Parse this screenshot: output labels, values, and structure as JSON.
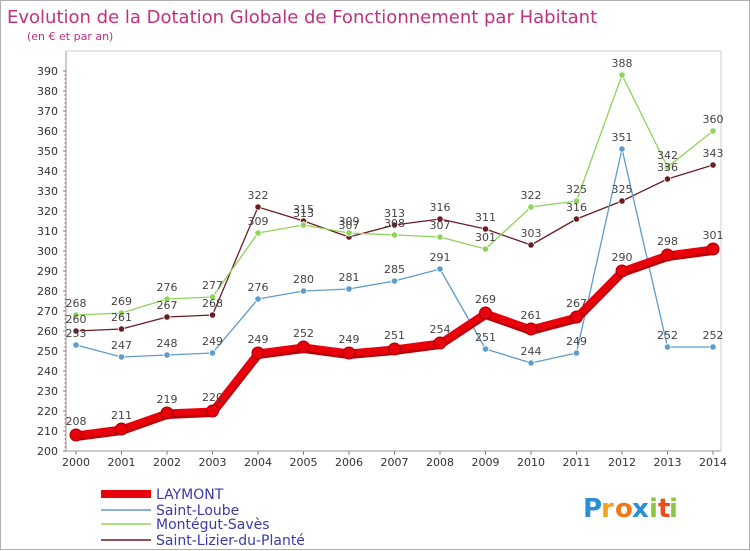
{
  "chart_data": {
    "type": "line",
    "title": "Evolution de la Dotation Globale de Fonctionnement par Habitant",
    "subtitle": "(en € et par an)",
    "xlabel": "",
    "ylabel": "",
    "x": [
      "2000",
      "2001",
      "2002",
      "2003",
      "2004",
      "2005",
      "2006",
      "2007",
      "2008",
      "2009",
      "2010",
      "2011",
      "2012",
      "2013",
      "2014"
    ],
    "yticks": [
      "200",
      "210",
      "220",
      "230",
      "240",
      "250",
      "260",
      "270",
      "280",
      "290",
      "300",
      "310",
      "320",
      "330",
      "340",
      "350",
      "360",
      "370",
      "380",
      "390"
    ],
    "ylim": [
      200,
      390
    ],
    "grid": false,
    "legend": "bottom-left",
    "series": [
      {
        "name": "LAYMONT",
        "color": "#e8000b",
        "values": [
          208,
          211,
          219,
          220,
          249,
          252,
          249,
          251,
          254,
          269,
          261,
          267,
          290,
          298,
          301
        ],
        "labels": [
          "208",
          "211",
          "219",
          "220",
          "249",
          "252",
          "249",
          "251",
          "254",
          "269",
          "261",
          "267",
          "290",
          "298",
          "301"
        ]
      },
      {
        "name": "Saint-Loube",
        "color": "#5e9ccc",
        "values": [
          253,
          247,
          248,
          249,
          276,
          280,
          281,
          285,
          291,
          251,
          244,
          249,
          351,
          252,
          252
        ],
        "labels": [
          "253",
          "247",
          "248",
          "249",
          "276",
          "280",
          "281",
          "285",
          "291",
          "251",
          "244",
          "249",
          "351",
          "252",
          "252"
        ]
      },
      {
        "name": "Montégut-Savès",
        "color": "#8fd35a",
        "values": [
          268,
          269,
          276,
          277,
          309,
          313,
          309,
          308,
          307,
          301,
          322,
          325,
          388,
          342,
          360
        ],
        "labels": [
          "268",
          "269",
          "276",
          "277",
          "309",
          "313",
          "309",
          "308",
          "307",
          "301",
          "322",
          "325",
          "388",
          "342",
          "360"
        ]
      },
      {
        "name": "Saint-Lizier-du-Planté",
        "color": "#6b1d22",
        "values": [
          260,
          261,
          267,
          268,
          322,
          315,
          307,
          313,
          316,
          311,
          303,
          316,
          325,
          336,
          343
        ],
        "labels": [
          "260",
          "261",
          "267",
          "268",
          "322",
          "315",
          "307",
          "313",
          "316",
          "311",
          "303",
          "316",
          "325",
          "336",
          "343"
        ]
      }
    ]
  },
  "brand": {
    "letters": [
      "P",
      "r",
      "o",
      "x",
      "i",
      "t",
      "i"
    ],
    "colors": [
      "#2a8fd6",
      "#f5a11c",
      "#f07a1a",
      "#2a8fd6",
      "#8cc63f",
      "#e84e1b",
      "#8cc63f"
    ]
  }
}
